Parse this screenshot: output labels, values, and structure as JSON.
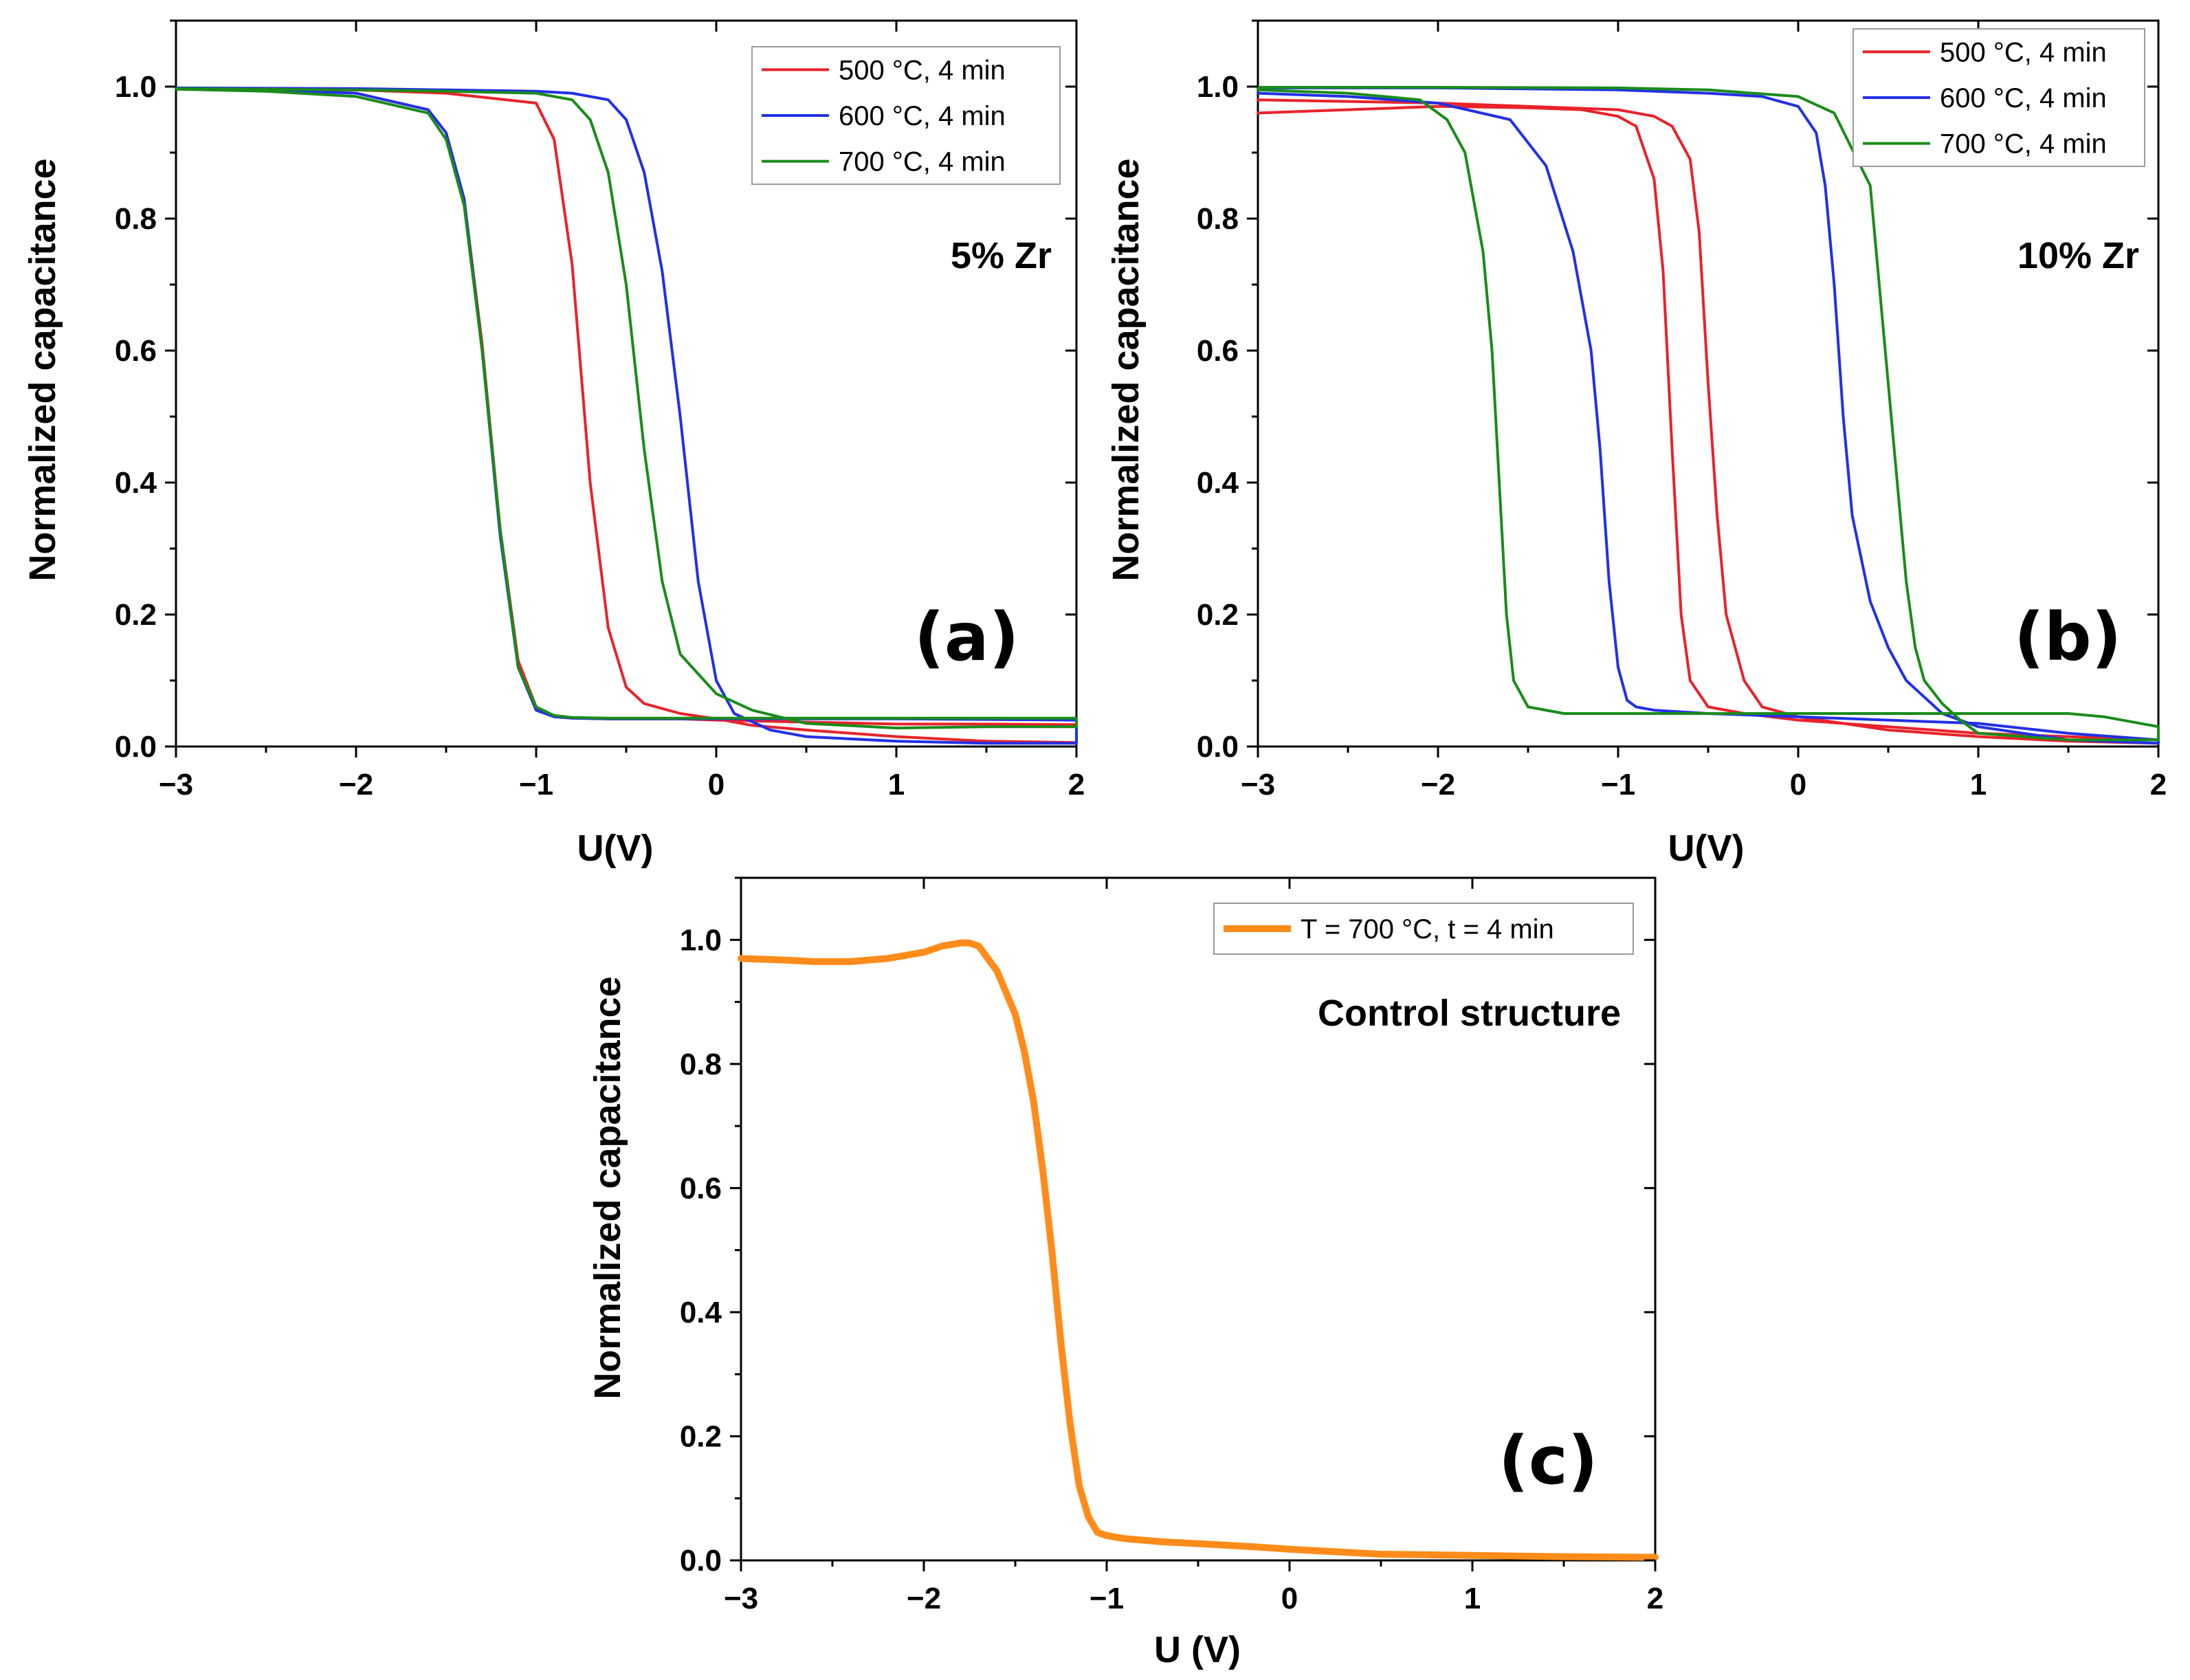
{
  "chart_data": [
    {
      "type": "line",
      "panel_label": "(a)",
      "annotation": "5% Zr",
      "xlabel": "U(V)",
      "ylabel": "Normalized capacitance",
      "xlim": [
        -3,
        2
      ],
      "ylim": [
        0,
        1.1
      ],
      "xticks": [
        -3,
        -2,
        -1,
        0,
        1,
        2
      ],
      "xtick_labels": [
        "−3",
        "−2",
        "−1",
        "0",
        "1",
        "2"
      ],
      "yticks": [
        0,
        0.2,
        0.4,
        0.6,
        0.8,
        1.0
      ],
      "ytick_labels": [
        "0.0",
        "0.2",
        "0.4",
        "0.6",
        "0.8",
        "1.0"
      ],
      "legend_position": "top-right",
      "series": [
        {
          "name": "500 °C, 4 min",
          "color": "#e8232a",
          "width": 4,
          "x": [
            -3,
            -2.5,
            -2,
            -1.6,
            -1.5,
            -1.4,
            -1.3,
            -1.2,
            -1.1,
            -1.0,
            -0.9,
            -0.8,
            -0.6,
            -0.4,
            -0.2,
            0,
            0.5,
            1,
            1.5,
            2,
            2,
            1.5,
            1,
            0.5,
            0.2,
            0,
            -0.2,
            -0.4,
            -0.5,
            -0.6,
            -0.7,
            -0.8,
            -0.9,
            -1.0,
            -1.5,
            -2,
            -3
          ],
          "y": [
            0.997,
            0.995,
            0.99,
            0.965,
            0.93,
            0.83,
            0.61,
            0.33,
            0.13,
            0.06,
            0.046,
            0.043,
            0.042,
            0.042,
            0.042,
            0.04,
            0.037,
            0.034,
            0.034,
            0.033,
            0.006,
            0.008,
            0.015,
            0.025,
            0.032,
            0.042,
            0.05,
            0.065,
            0.09,
            0.18,
            0.4,
            0.73,
            0.92,
            0.975,
            0.99,
            0.995,
            0.997
          ]
        },
        {
          "name": "600 °C, 4 min",
          "color": "#2230e6",
          "width": 4,
          "x": [
            -3,
            -2.5,
            -2,
            -1.6,
            -1.5,
            -1.4,
            -1.3,
            -1.2,
            -1.1,
            -1.0,
            -0.9,
            -0.8,
            -0.6,
            -0.3,
            0,
            0.5,
            1,
            1.5,
            2,
            2,
            1.5,
            1,
            0.5,
            0.3,
            0.1,
            0,
            -0.1,
            -0.2,
            -0.3,
            -0.4,
            -0.5,
            -0.6,
            -0.8,
            -1.0,
            -1.5,
            -2,
            -3
          ],
          "y": [
            0.997,
            0.995,
            0.99,
            0.965,
            0.93,
            0.83,
            0.6,
            0.32,
            0.12,
            0.055,
            0.045,
            0.043,
            0.042,
            0.042,
            0.042,
            0.042,
            0.042,
            0.041,
            0.04,
            0.005,
            0.005,
            0.008,
            0.015,
            0.025,
            0.05,
            0.1,
            0.25,
            0.5,
            0.72,
            0.87,
            0.95,
            0.98,
            0.99,
            0.993,
            0.995,
            0.997,
            0.998
          ]
        },
        {
          "name": "700 °C, 4 min",
          "color": "#1a8c1a",
          "width": 4,
          "x": [
            -3,
            -2.5,
            -2,
            -1.6,
            -1.5,
            -1.4,
            -1.3,
            -1.2,
            -1.1,
            -1.0,
            -0.9,
            -0.8,
            -0.6,
            -0.2,
            0.5,
            1,
            1.5,
            2,
            2,
            1.5,
            1,
            0.5,
            0.2,
            0,
            -0.2,
            -0.3,
            -0.4,
            -0.5,
            -0.6,
            -0.7,
            -0.8,
            -1.0,
            -1.5,
            -2,
            -3
          ],
          "y": [
            0.996,
            0.993,
            0.985,
            0.96,
            0.92,
            0.82,
            0.6,
            0.33,
            0.12,
            0.06,
            0.047,
            0.044,
            0.043,
            0.043,
            0.043,
            0.043,
            0.043,
            0.043,
            0.03,
            0.03,
            0.028,
            0.035,
            0.055,
            0.08,
            0.14,
            0.25,
            0.45,
            0.7,
            0.87,
            0.95,
            0.98,
            0.99,
            0.993,
            0.995,
            0.997
          ]
        }
      ]
    },
    {
      "type": "line",
      "panel_label": "(b)",
      "annotation": "10% Zr",
      "xlabel": "U(V)",
      "ylabel": "Normalized capacitance",
      "xlim": [
        -3,
        2
      ],
      "ylim": [
        0,
        1.1
      ],
      "xticks": [
        -3,
        -2,
        -1,
        0,
        1,
        2
      ],
      "xtick_labels": [
        "−3",
        "−2",
        "−1",
        "0",
        "1",
        "2"
      ],
      "yticks": [
        0,
        0.2,
        0.4,
        0.6,
        0.8,
        1.0
      ],
      "ytick_labels": [
        "0.0",
        "0.2",
        "0.4",
        "0.6",
        "0.8",
        "1.0"
      ],
      "legend_position": "top-right",
      "series": [
        {
          "name": "500 °C, 4 min",
          "color": "#e8232a",
          "width": 4,
          "x": [
            -3,
            -2.5,
            -2,
            -1.5,
            -1.2,
            -1.0,
            -0.9,
            -0.8,
            -0.75,
            -0.7,
            -0.65,
            -0.6,
            -0.5,
            -0.3,
            0,
            0.5,
            1,
            1.5,
            2,
            2,
            1.5,
            1,
            0.5,
            0,
            -0.2,
            -0.3,
            -0.4,
            -0.45,
            -0.5,
            -0.55,
            -0.6,
            -0.7,
            -0.8,
            -1.0,
            -1.5,
            -2,
            -3
          ],
          "y": [
            0.96,
            0.965,
            0.97,
            0.968,
            0.965,
            0.955,
            0.94,
            0.86,
            0.72,
            0.45,
            0.2,
            0.1,
            0.06,
            0.05,
            0.04,
            0.03,
            0.02,
            0.015,
            0.01,
            0.005,
            0.008,
            0.015,
            0.025,
            0.045,
            0.06,
            0.1,
            0.2,
            0.35,
            0.55,
            0.78,
            0.89,
            0.94,
            0.955,
            0.965,
            0.97,
            0.975,
            0.98
          ]
        },
        {
          "name": "600 °C, 4 min",
          "color": "#2230e6",
          "width": 4,
          "x": [
            -3,
            -2.5,
            -2,
            -1.6,
            -1.4,
            -1.25,
            -1.15,
            -1.1,
            -1.05,
            -1.0,
            -0.95,
            -0.9,
            -0.8,
            -0.5,
            0,
            0.5,
            1,
            1.5,
            2,
            2,
            1.5,
            1,
            0.8,
            0.6,
            0.5,
            0.4,
            0.3,
            0.25,
            0.2,
            0.15,
            0.1,
            0,
            -0.2,
            -0.5,
            -1,
            -2,
            -3
          ],
          "y": [
            0.99,
            0.985,
            0.975,
            0.95,
            0.88,
            0.75,
            0.6,
            0.45,
            0.25,
            0.12,
            0.07,
            0.06,
            0.055,
            0.05,
            0.045,
            0.04,
            0.035,
            0.02,
            0.01,
            0.005,
            0.01,
            0.03,
            0.05,
            0.1,
            0.15,
            0.22,
            0.35,
            0.5,
            0.7,
            0.85,
            0.93,
            0.97,
            0.985,
            0.99,
            0.995,
            0.998,
            0.998
          ]
        },
        {
          "name": "700 °C, 4 min",
          "color": "#1a8c1a",
          "width": 4,
          "x": [
            -3,
            -2.5,
            -2.1,
            -1.95,
            -1.85,
            -1.75,
            -1.7,
            -1.65,
            -1.62,
            -1.58,
            -1.5,
            -1.3,
            -1.0,
            -0.5,
            0,
            0.5,
            1,
            1.5,
            1.7,
            2,
            2,
            1.5,
            1,
            0.9,
            0.8,
            0.7,
            0.65,
            0.6,
            0.55,
            0.5,
            0.45,
            0.4,
            0.2,
            0,
            -0.5,
            -1,
            -2,
            -3
          ],
          "y": [
            0.995,
            0.99,
            0.98,
            0.95,
            0.9,
            0.75,
            0.6,
            0.35,
            0.2,
            0.1,
            0.06,
            0.05,
            0.05,
            0.05,
            0.05,
            0.05,
            0.05,
            0.05,
            0.045,
            0.03,
            0.01,
            0.01,
            0.02,
            0.04,
            0.065,
            0.1,
            0.15,
            0.25,
            0.4,
            0.55,
            0.7,
            0.85,
            0.96,
            0.985,
            0.995,
            0.998,
            0.999,
            0.999
          ]
        }
      ]
    },
    {
      "type": "line",
      "panel_label": "(c)",
      "annotation": "Control structure",
      "xlabel": "U (V)",
      "ylabel": "Normalized capacitance",
      "xlim": [
        -3,
        2
      ],
      "ylim": [
        0,
        1.1
      ],
      "xticks": [
        -3,
        -2,
        -1,
        0,
        1,
        2
      ],
      "xtick_labels": [
        "−3",
        "−2",
        "−1",
        "0",
        "1",
        "2"
      ],
      "yticks": [
        0,
        0.2,
        0.4,
        0.6,
        0.8,
        1.0
      ],
      "ytick_labels": [
        "0.0",
        "0.2",
        "0.4",
        "0.6",
        "0.8",
        "1.0"
      ],
      "legend_position": "top-right",
      "series": [
        {
          "name": "T = 700 °C, t = 4 min",
          "color": "#ff8c1a",
          "width": 10,
          "x": [
            -3,
            -2.8,
            -2.6,
            -2.4,
            -2.2,
            -2.0,
            -1.9,
            -1.8,
            -1.75,
            -1.7,
            -1.6,
            -1.5,
            -1.45,
            -1.4,
            -1.35,
            -1.3,
            -1.25,
            -1.2,
            -1.15,
            -1.1,
            -1.05,
            -1.0,
            -0.9,
            -0.7,
            -0.5,
            -0.2,
            0,
            0.5,
            1,
            1.5,
            2
          ],
          "y": [
            0.97,
            0.968,
            0.965,
            0.965,
            0.97,
            0.98,
            0.99,
            0.995,
            0.995,
            0.99,
            0.95,
            0.88,
            0.82,
            0.74,
            0.63,
            0.5,
            0.35,
            0.22,
            0.12,
            0.07,
            0.045,
            0.04,
            0.035,
            0.03,
            0.027,
            0.022,
            0.018,
            0.01,
            0.008,
            0.006,
            0.005
          ]
        }
      ]
    }
  ]
}
